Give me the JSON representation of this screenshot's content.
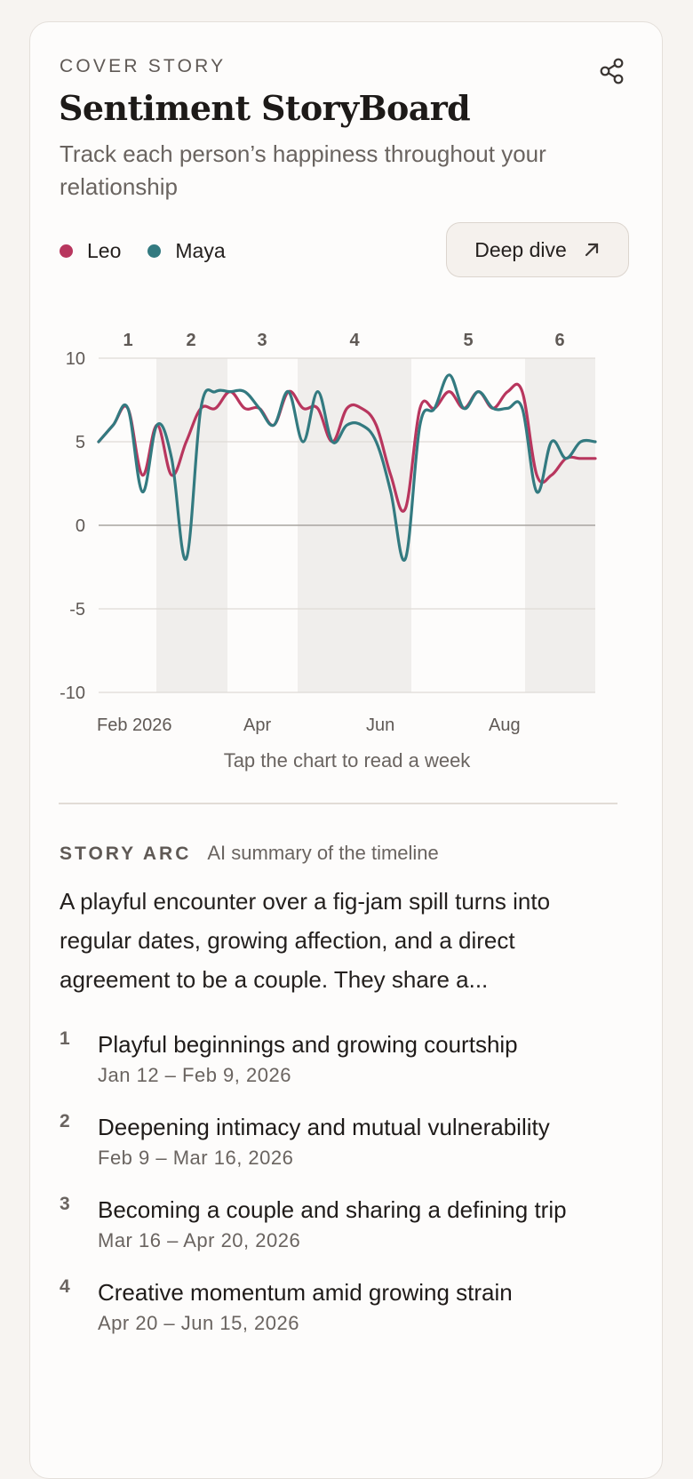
{
  "header": {
    "eyebrow": "COVER STORY",
    "title": "Sentiment StoryBoard",
    "subtitle": "Track each person’s happiness throughout your relationship"
  },
  "legend": [
    {
      "name": "Leo",
      "color": "#b8365e"
    },
    {
      "name": "Maya",
      "color": "#337a80"
    }
  ],
  "actions": {
    "deep_dive_label": "Deep dive",
    "share_icon": "share-icon",
    "deep_dive_icon": "arrow-up-right-icon"
  },
  "chart_data": {
    "type": "line",
    "ylim": [
      -10,
      10
    ],
    "yticks": [
      "10",
      "5",
      "0",
      "-5",
      "-10"
    ],
    "xtick_labels": [
      "Feb 2026",
      "Apr",
      "Jun",
      "Aug"
    ],
    "chapter_labels": [
      "1",
      "2",
      "3",
      "4",
      "5",
      "6"
    ],
    "grid": true,
    "series": [
      {
        "name": "Leo",
        "color": "#b8365e",
        "values": [
          5,
          6,
          7,
          3,
          6,
          3,
          5,
          7,
          7,
          8,
          7,
          7,
          6,
          8,
          7,
          7,
          5,
          7,
          7,
          6,
          3,
          1,
          7,
          7,
          8,
          7,
          8,
          7,
          8,
          8,
          3,
          3,
          4,
          4,
          4
        ]
      },
      {
        "name": "Maya",
        "color": "#337a80",
        "values": [
          5,
          6,
          7,
          2,
          6,
          4,
          -2,
          7,
          8,
          8,
          8,
          7,
          6,
          8,
          5,
          8,
          5,
          6,
          6,
          5,
          2,
          -2,
          6,
          7,
          9,
          7,
          8,
          7,
          7,
          7,
          2,
          5,
          4,
          5,
          5
        ]
      }
    ]
  },
  "chart_hint": "Tap the chart to read a week",
  "story_arc": {
    "label": "STORY ARC",
    "sublabel": "AI summary of the timeline",
    "summary": "A playful encounter over a fig-jam spill turns into regular dates, growing affection, and a direct agreement to be a couple. They share a...",
    "chapters": [
      {
        "num": "1",
        "title": "Playful beginnings and growing courtship",
        "dates": "Jan 12 – Feb 9, 2026"
      },
      {
        "num": "2",
        "title": "Deepening intimacy and mutual vulnerability",
        "dates": "Feb 9 – Mar 16, 2026"
      },
      {
        "num": "3",
        "title": "Becoming a couple and sharing a defining trip",
        "dates": "Mar 16 – Apr 20, 2026"
      },
      {
        "num": "4",
        "title": "Creative momentum amid growing strain",
        "dates": "Apr 20 – Jun 15, 2026"
      }
    ]
  }
}
